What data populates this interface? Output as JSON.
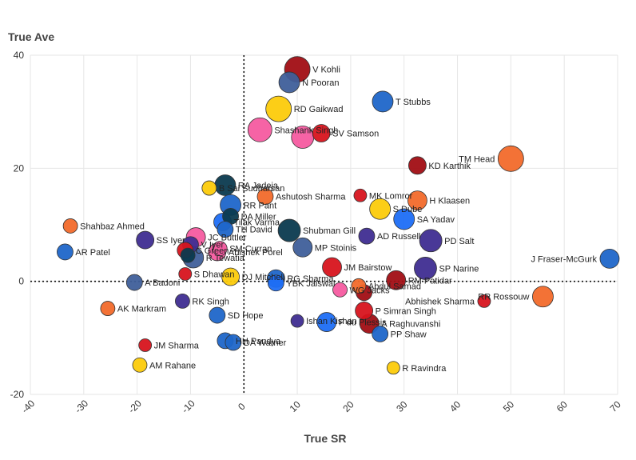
{
  "chart_data": {
    "type": "scatter",
    "title": "",
    "xlabel": "True SR",
    "ylabel": "True Ave",
    "xlim": [
      -40,
      70
    ],
    "ylim": [
      -20,
      40
    ],
    "x_ticks": [
      -40,
      -30,
      -20,
      -10,
      0,
      10,
      20,
      30,
      40,
      50,
      60,
      70
    ],
    "y_ticks": [
      -20,
      0,
      20,
      40
    ],
    "grid": true,
    "reference_lines": {
      "x": 0,
      "y": 0,
      "style": "dotted"
    },
    "colors": {
      "darkred": "#a10e14",
      "red": "#d7141e",
      "orange": "#f26a2b",
      "yellow": "#fccb0b",
      "pink": "#f55ba0",
      "blue": "#1f66c9",
      "brightblue": "#1d6ef5",
      "navy": "#3f2d91",
      "slate": "#3f5f9a",
      "darkteal": "#0b3a4f"
    },
    "points": [
      {
        "label": "V Kohli",
        "x": 10,
        "y": 37.5,
        "size": 16,
        "color": "#a10e14"
      },
      {
        "label": "N Pooran",
        "x": 8.5,
        "y": 35.2,
        "size": 13,
        "color": "#3f5f9a"
      },
      {
        "label": "T Stubbs",
        "x": 26,
        "y": 31.8,
        "size": 13,
        "color": "#1f66c9"
      },
      {
        "label": "RD Gaikwad",
        "x": 6.5,
        "y": 30.5,
        "size": 16,
        "color": "#fccb0b"
      },
      {
        "label": "Shashank Singh",
        "x": 3,
        "y": 26.8,
        "size": 15,
        "color": "#f55ba0"
      },
      {
        "label": "",
        "x": 11,
        "y": 25.5,
        "size": 14,
        "color": "#f55ba0"
      },
      {
        "label": "SV Samson",
        "x": 14.5,
        "y": 26.2,
        "size": 11,
        "color": "#d7141e"
      },
      {
        "label": "TM Head",
        "x": 50,
        "y": 21.7,
        "size": 16,
        "color": "#f26a2b"
      },
      {
        "label": "KD Karthik",
        "x": 32.5,
        "y": 20.5,
        "size": 11,
        "color": "#a10e14"
      },
      {
        "label": "B Sai Sudharsan",
        "x": -6.5,
        "y": 16.5,
        "size": 9,
        "color": "#fccb0b"
      },
      {
        "label": "RA Jadeja",
        "x": -3.5,
        "y": 17,
        "size": 13,
        "color": "#0b3a4f"
      },
      {
        "label": "Ashutosh Sharma",
        "x": 4,
        "y": 15,
        "size": 10,
        "color": "#f26a2b"
      },
      {
        "label": "RR Pant",
        "x": -2.5,
        "y": 13.5,
        "size": 13,
        "color": "#1f66c9"
      },
      {
        "label": "H Klaasen",
        "x": 32.5,
        "y": 14.3,
        "size": 12,
        "color": "#f26a2b"
      },
      {
        "label": "S Dube",
        "x": 25.5,
        "y": 12.8,
        "size": 13,
        "color": "#fccb0b"
      },
      {
        "label": "MK Lomror",
        "x": 21.8,
        "y": 15.2,
        "size": 8,
        "color": "#d7141e"
      },
      {
        "label": "DA Miller",
        "x": -2.5,
        "y": 11.5,
        "size": 10,
        "color": "#0b3a4f"
      },
      {
        "label": "Tilak Varma",
        "x": -4,
        "y": 10.5,
        "size": 11,
        "color": "#1d6ef5"
      },
      {
        "label": "SA Yadav",
        "x": 30,
        "y": 11,
        "size": 13,
        "color": "#1d6ef5"
      },
      {
        "label": "TH David",
        "x": -3.5,
        "y": 9.2,
        "size": 10,
        "color": "#1f66c9"
      },
      {
        "label": "Shubman Gill",
        "x": 8.5,
        "y": 9,
        "size": 14,
        "color": "#0b3a4f"
      },
      {
        "label": "Shahbaz Ahmed",
        "x": -32.5,
        "y": 9.8,
        "size": 9,
        "color": "#f26a2b"
      },
      {
        "label": "AD Russell",
        "x": 23,
        "y": 8,
        "size": 10,
        "color": "#3f2d91"
      },
      {
        "label": "PD Salt",
        "x": 35,
        "y": 7.2,
        "size": 14,
        "color": "#3f2d91"
      },
      {
        "label": "SS Iyer",
        "x": -18.5,
        "y": 7.3,
        "size": 11,
        "color": "#3f2d91"
      },
      {
        "label": "JC Buttler",
        "x": -9,
        "y": 7.8,
        "size": 12,
        "color": "#f55ba0"
      },
      {
        "label": "MP Stoinis",
        "x": 11,
        "y": 6,
        "size": 12,
        "color": "#3f5f9a"
      },
      {
        "label": "V Iyer",
        "x": -10,
        "y": 6.5,
        "size": 10,
        "color": "#3f2d91"
      },
      {
        "label": "AR Patel",
        "x": -33.5,
        "y": 5.2,
        "size": 10,
        "color": "#1f66c9"
      },
      {
        "label": "Abishek Porel",
        "x": -5,
        "y": 5.2,
        "size": 11,
        "color": "#f55ba0"
      },
      {
        "label": "C Green",
        "x": -11,
        "y": 5.5,
        "size": 10,
        "color": "#d7141e"
      },
      {
        "label": "SM Curran",
        "x": -4.5,
        "y": 5.8,
        "size": 9,
        "color": "#f55ba0"
      },
      {
        "label": "R Tewatia",
        "x": -9.5,
        "y": 4.2,
        "size": 13,
        "color": "#3f5f9a"
      },
      {
        "label": "J Fraser-McGurk",
        "x": 68.5,
        "y": 4,
        "size": 12,
        "color": "#1f66c9"
      },
      {
        "label": "",
        "x": -10.5,
        "y": 4.6,
        "size": 9,
        "color": "#0b3a4f"
      },
      {
        "label": "SP Narine",
        "x": 34,
        "y": 2.3,
        "size": 14,
        "color": "#3f2d91"
      },
      {
        "label": "JM Bairstow",
        "x": 16.5,
        "y": 2.5,
        "size": 12,
        "color": "#d7141e"
      },
      {
        "label": "S Dhawan",
        "x": -11,
        "y": 1.3,
        "size": 8,
        "color": "#d7141e"
      },
      {
        "label": "DJ Mitchell",
        "x": -2.5,
        "y": 0.8,
        "size": 11,
        "color": "#fccb0b"
      },
      {
        "label": "RG Sharma",
        "x": 6,
        "y": 0.5,
        "size": 11,
        "color": "#1f66c9"
      },
      {
        "label": "YBK Jaiswal",
        "x": 6,
        "y": -0.3,
        "size": 10,
        "color": "#1d6ef5"
      },
      {
        "label": "RM Patidar",
        "x": 28.5,
        "y": 0.2,
        "size": 12,
        "color": "#a10e14"
      },
      {
        "label": "Abdul Samad",
        "x": 21.5,
        "y": -0.8,
        "size": 9,
        "color": "#f26a2b"
      },
      {
        "label": "WG Jacks",
        "x": 18,
        "y": -1.5,
        "size": 9,
        "color": "#f55ba0"
      },
      {
        "label": "",
        "x": 22.5,
        "y": -2,
        "size": 10,
        "color": "#a10e14"
      },
      {
        "label": "A Badoni",
        "x": -20.5,
        "y": -0.2,
        "size": 10,
        "color": "#3f5f9a"
      },
      {
        "label": "Abhishek Sharma",
        "x": 45,
        "y": -3.5,
        "size": 8,
        "color": "#d7141e"
      },
      {
        "label": "RR Rossouw",
        "x": 56,
        "y": -2.7,
        "size": 13,
        "color": "#f26a2b"
      },
      {
        "label": "RK Singh",
        "x": -11.5,
        "y": -3.5,
        "size": 9,
        "color": "#3f2d91"
      },
      {
        "label": "AK Markram",
        "x": -25.5,
        "y": -4.8,
        "size": 9,
        "color": "#f26a2b"
      },
      {
        "label": "SD Hope",
        "x": -5,
        "y": -6,
        "size": 10,
        "color": "#1f66c9"
      },
      {
        "label": "P Simran Singh",
        "x": 22.5,
        "y": -5.2,
        "size": 11,
        "color": "#d7141e"
      },
      {
        "label": "A Raghuvanshi",
        "x": 23.5,
        "y": -7.5,
        "size": 12,
        "color": "#a10e14"
      },
      {
        "label": "Ishan Kishan",
        "x": 10,
        "y": -7,
        "size": 8,
        "color": "#3f2d91"
      },
      {
        "label": "PP Shaw",
        "x": 25.5,
        "y": -9.3,
        "size": 10,
        "color": "#1f66c9"
      },
      {
        "label": "F du Plessis",
        "x": 15.5,
        "y": -7.2,
        "size": 12,
        "color": "#1d6ef5"
      },
      {
        "label": "HH Pandya",
        "x": -3.5,
        "y": -10.5,
        "size": 10,
        "color": "#1f66c9"
      },
      {
        "label": "DA Warner",
        "x": -2,
        "y": -10.8,
        "size": 10,
        "color": "#1f66c9"
      },
      {
        "label": "JM Sharma",
        "x": -18.5,
        "y": -11.3,
        "size": 8,
        "color": "#d7141e"
      },
      {
        "label": "AM Rahane",
        "x": -19.5,
        "y": -14.8,
        "size": 9,
        "color": "#fccb0b"
      },
      {
        "label": "R Ravindra",
        "x": 28,
        "y": -15.3,
        "size": 8,
        "color": "#fccb0b"
      }
    ]
  }
}
